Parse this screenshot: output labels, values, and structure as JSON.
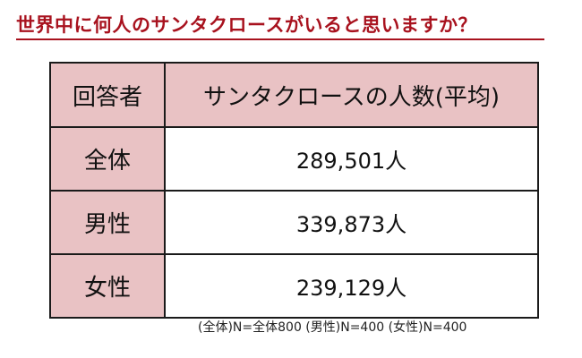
{
  "title": "世界中に何人のサンタクロースがいると思いますか？",
  "chart_data": {
    "type": "table",
    "title": "世界中に何人のサンタクロースがいると思いますか？",
    "columns": [
      "回答者",
      "サンタクロースの人数(平均)"
    ],
    "rows": [
      {
        "respondent": "全体",
        "value_text": "289,501人",
        "value": 289501
      },
      {
        "respondent": "男性",
        "value_text": "339,873人",
        "value": 339873
      },
      {
        "respondent": "女性",
        "value_text": "239,129人",
        "value": 239129
      }
    ],
    "note": "(全体)N=全体800 (男性)N=400 (女性)N=400"
  },
  "colors": {
    "title": "#a8121e",
    "header_fill": "#e9c2c4",
    "border": "#1a1a1a"
  }
}
